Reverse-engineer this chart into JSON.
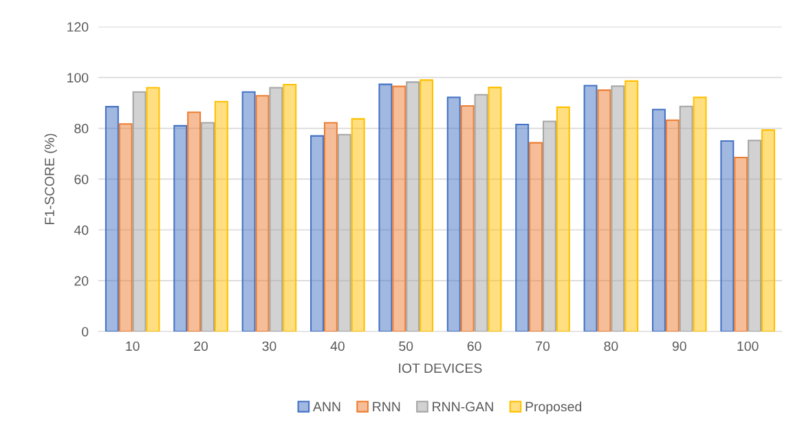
{
  "chart_data": {
    "type": "bar",
    "xlabel": "IOT DEVICES",
    "ylabel": "F1-SCORE (%)",
    "categories": [
      "10",
      "20",
      "30",
      "40",
      "50",
      "60",
      "70",
      "80",
      "90",
      "100"
    ],
    "series": [
      {
        "name": "ANN",
        "color": "#4472c4",
        "values": [
          88.5,
          81,
          94.3,
          77,
          97.3,
          92.2,
          81.5,
          96.8,
          87.4,
          75
        ]
      },
      {
        "name": "RNN",
        "color": "#ed7d31",
        "values": [
          81.7,
          86.3,
          92.8,
          82.2,
          96.5,
          88.8,
          74.3,
          95,
          83.2,
          68.5
        ]
      },
      {
        "name": "RNN-GAN",
        "color": "#a5a5a5",
        "values": [
          94.3,
          82.2,
          96,
          77.5,
          98.2,
          93.2,
          82.7,
          96.6,
          88.6,
          75.2
        ]
      },
      {
        "name": "Proposed",
        "color": "#ffc000",
        "values": [
          96,
          90.5,
          97.2,
          83.7,
          99,
          96.1,
          88.3,
          98.6,
          92.2,
          79.3
        ]
      }
    ],
    "ylim": [
      0,
      120
    ],
    "yticks": [
      0,
      20,
      40,
      60,
      80,
      100,
      120
    ],
    "grid": "y",
    "legend": "bottom"
  }
}
